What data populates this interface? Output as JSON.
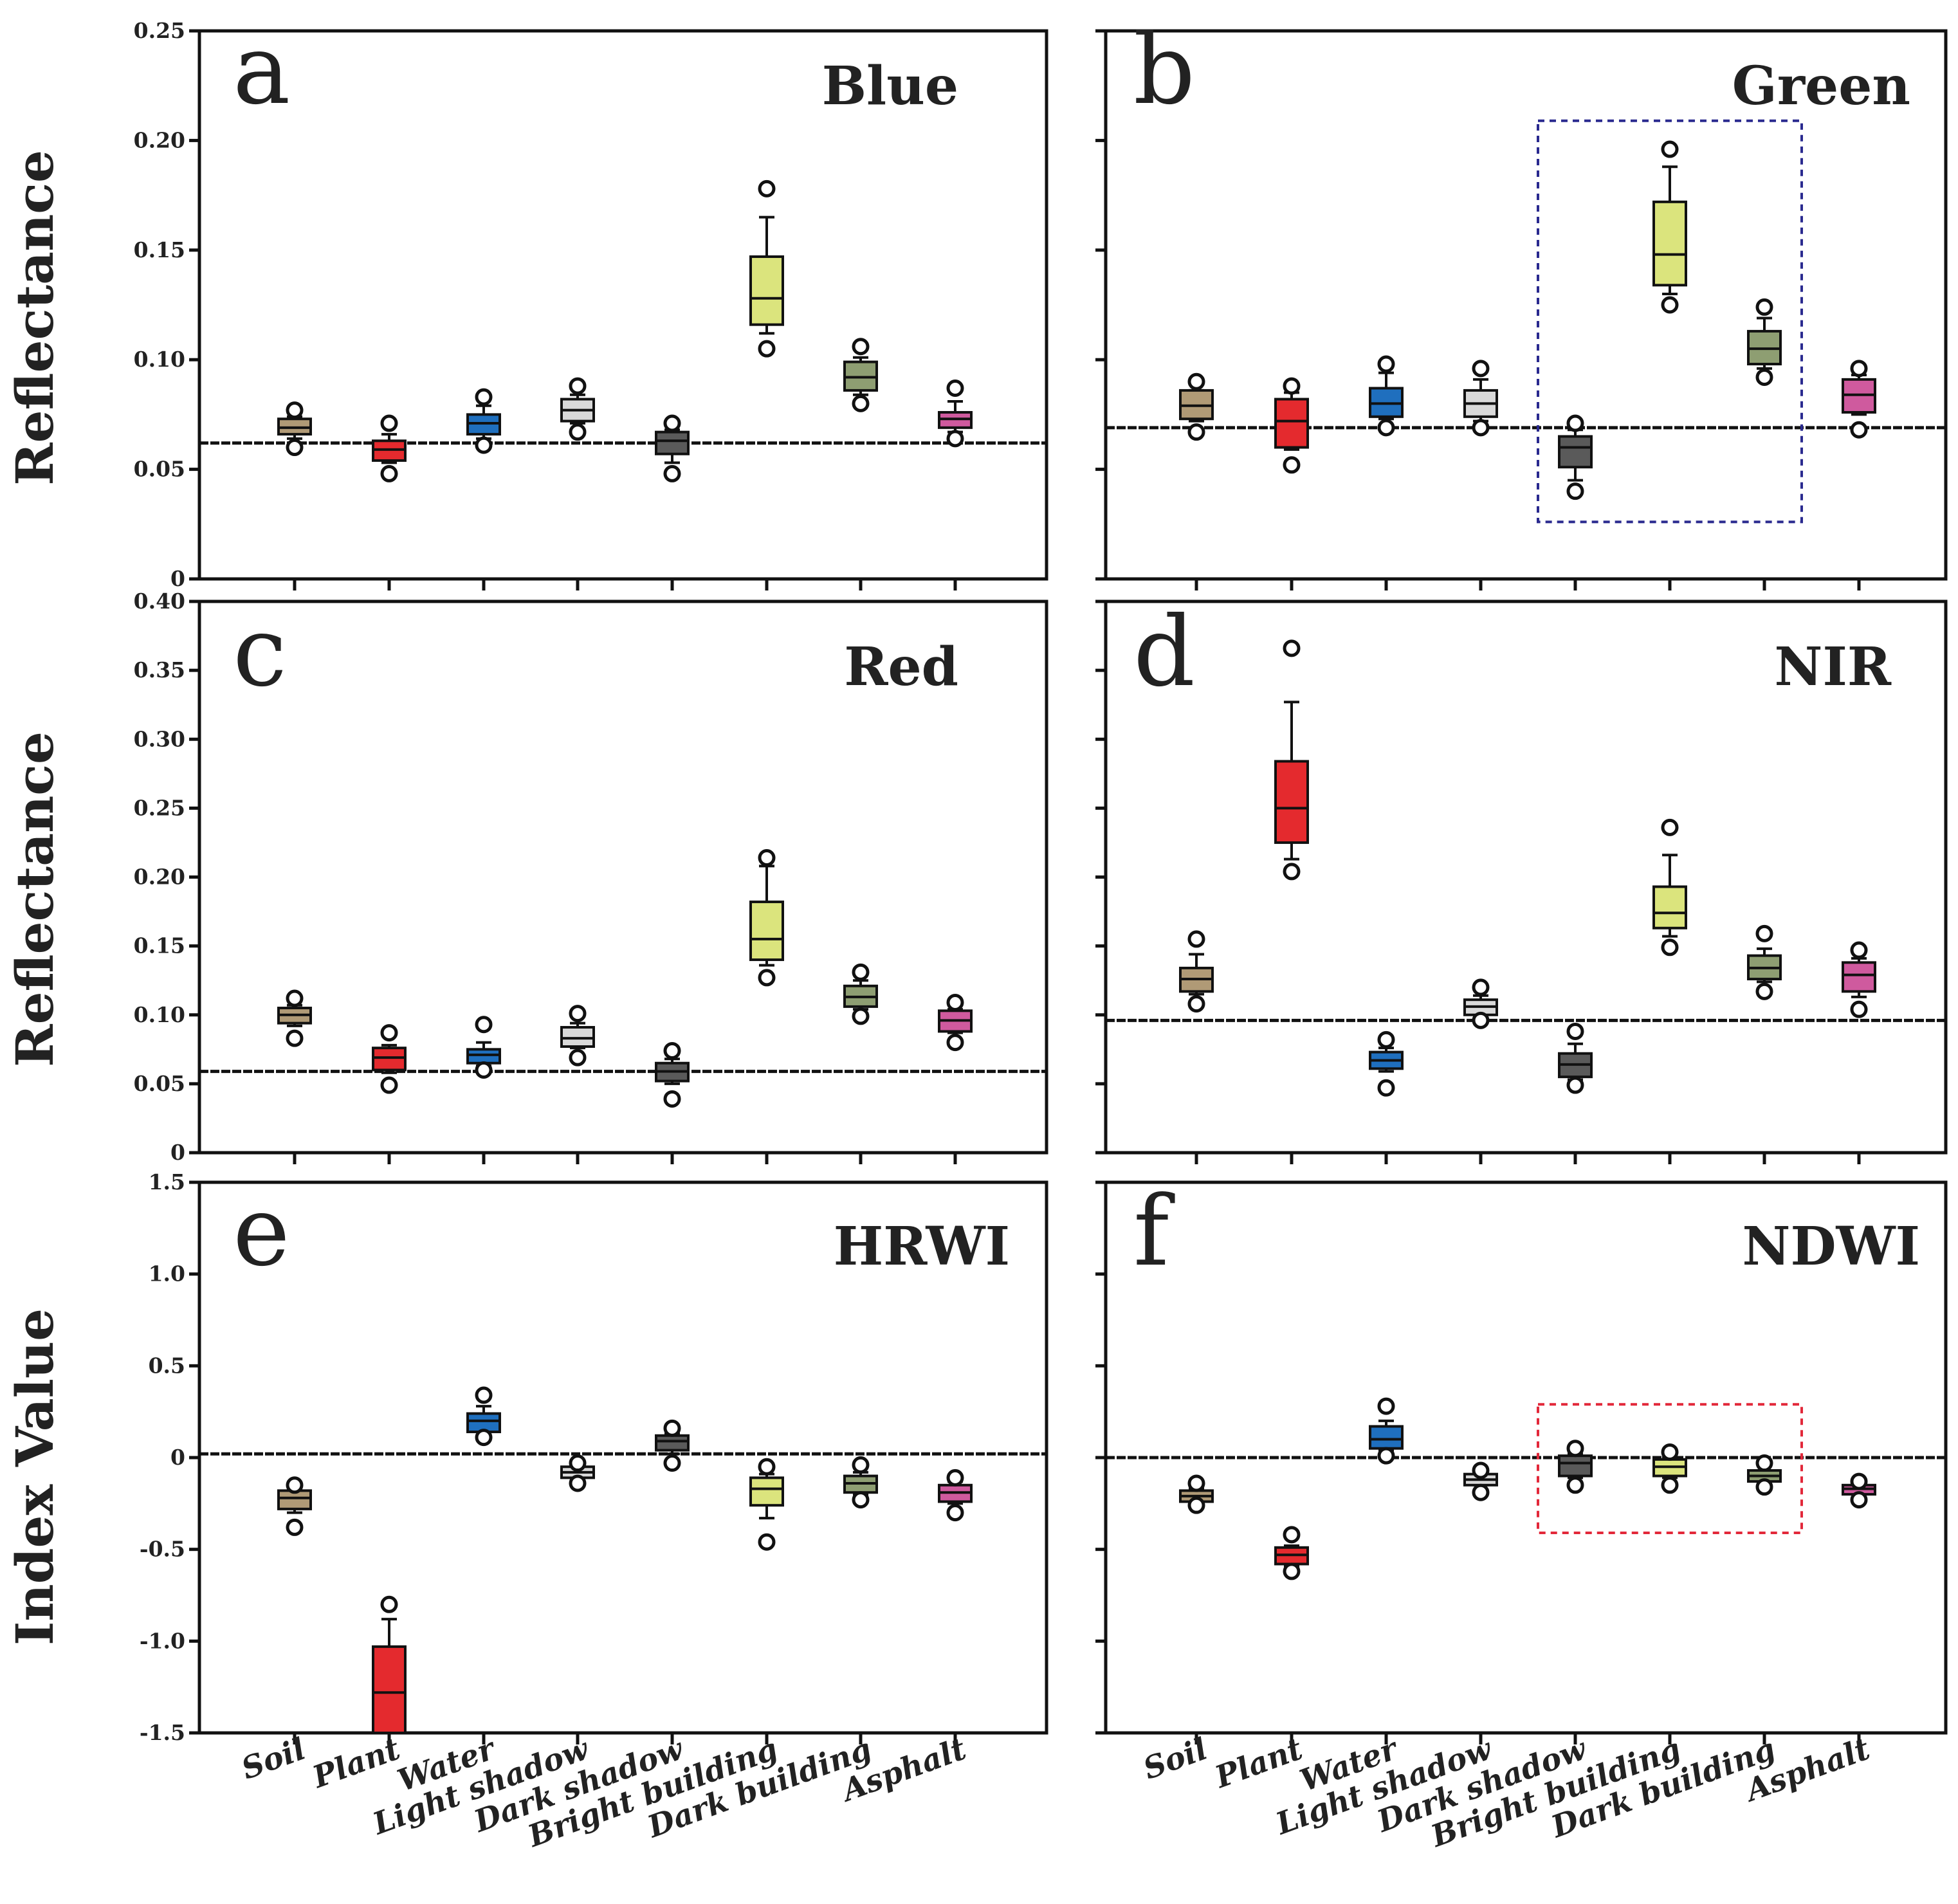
{
  "y_axis_labels": {
    "row1": "Reflectance",
    "row2": "Reflectance",
    "row3": "Index Value"
  },
  "categories": [
    "Soil",
    "Plant",
    "Water",
    "Light shadow",
    "Dark shadow",
    "Bright building",
    "Dark building",
    "Asphalt"
  ],
  "category_colors": [
    "#b09a76",
    "#e42a2e",
    "#1f6fbe",
    "#d9d9d9",
    "#5a5a5a",
    "#dbe47d",
    "#8e9e72",
    "#cf5a9e"
  ],
  "chart_data": [
    {
      "type": "box",
      "letter": "a",
      "title": "Blue",
      "ylim": [
        0,
        0.25
      ],
      "yticks": [
        0,
        0.05,
        0.1,
        0.15,
        0.2,
        0.25
      ],
      "ytick_labels": [
        "0",
        "0.05",
        "0.10",
        "0.15",
        "0.20",
        "0.25"
      ],
      "reference_line": 0.062,
      "boxes": [
        {
          "category": "Soil",
          "wlo": 0.064,
          "q1": 0.066,
          "median": 0.069,
          "q3": 0.073,
          "whi": 0.074,
          "outliers": [
            0.06,
            0.077
          ]
        },
        {
          "category": "Plant",
          "wlo": 0.053,
          "q1": 0.054,
          "median": 0.059,
          "q3": 0.063,
          "whi": 0.066,
          "outliers": [
            0.048,
            0.071
          ]
        },
        {
          "category": "Water",
          "wlo": 0.064,
          "q1": 0.066,
          "median": 0.071,
          "q3": 0.075,
          "whi": 0.079,
          "outliers": [
            0.061,
            0.083
          ]
        },
        {
          "category": "Light shadow",
          "wlo": 0.071,
          "q1": 0.072,
          "median": 0.077,
          "q3": 0.082,
          "whi": 0.084,
          "outliers": [
            0.067,
            0.088
          ]
        },
        {
          "category": "Dark shadow",
          "wlo": 0.053,
          "q1": 0.057,
          "median": 0.063,
          "q3": 0.067,
          "whi": 0.068,
          "outliers": [
            0.048,
            0.071
          ]
        },
        {
          "category": "Bright building",
          "wlo": 0.112,
          "q1": 0.116,
          "median": 0.128,
          "q3": 0.147,
          "whi": 0.165,
          "outliers": [
            0.105,
            0.178
          ]
        },
        {
          "category": "Dark building",
          "wlo": 0.084,
          "q1": 0.086,
          "median": 0.092,
          "q3": 0.099,
          "whi": 0.101,
          "outliers": [
            0.08,
            0.106
          ]
        },
        {
          "category": "Asphalt",
          "wlo": 0.067,
          "q1": 0.069,
          "median": 0.073,
          "q3": 0.076,
          "whi": 0.081,
          "outliers": [
            0.064,
            0.087
          ]
        }
      ]
    },
    {
      "type": "box",
      "letter": "b",
      "title": "Green",
      "ylim": [
        0,
        0.25
      ],
      "yticks": [
        0,
        0.05,
        0.1,
        0.15,
        0.2,
        0.25
      ],
      "ytick_labels": [],
      "reference_line": 0.069,
      "highlight": {
        "from": 4,
        "to": 6,
        "y0": 0.026,
        "y1": 0.209,
        "color": "#2a2a8f"
      },
      "boxes": [
        {
          "category": "Soil",
          "wlo": 0.072,
          "q1": 0.073,
          "median": 0.079,
          "q3": 0.086,
          "whi": 0.086,
          "outliers": [
            0.067,
            0.09
          ]
        },
        {
          "category": "Plant",
          "wlo": 0.059,
          "q1": 0.06,
          "median": 0.072,
          "q3": 0.082,
          "whi": 0.085,
          "outliers": [
            0.052,
            0.088
          ]
        },
        {
          "category": "Water",
          "wlo": 0.073,
          "q1": 0.074,
          "median": 0.08,
          "q3": 0.087,
          "whi": 0.094,
          "outliers": [
            0.069,
            0.098
          ]
        },
        {
          "category": "Light shadow",
          "wlo": 0.072,
          "q1": 0.074,
          "median": 0.08,
          "q3": 0.086,
          "whi": 0.091,
          "outliers": [
            0.069,
            0.096
          ]
        },
        {
          "category": "Dark shadow",
          "wlo": 0.045,
          "q1": 0.051,
          "median": 0.06,
          "q3": 0.065,
          "whi": 0.068,
          "outliers": [
            0.04,
            0.071
          ]
        },
        {
          "category": "Bright building",
          "wlo": 0.13,
          "q1": 0.134,
          "median": 0.148,
          "q3": 0.172,
          "whi": 0.188,
          "outliers": [
            0.125,
            0.196
          ]
        },
        {
          "category": "Dark building",
          "wlo": 0.096,
          "q1": 0.098,
          "median": 0.105,
          "q3": 0.113,
          "whi": 0.119,
          "outliers": [
            0.092,
            0.124
          ]
        },
        {
          "category": "Asphalt",
          "wlo": 0.075,
          "q1": 0.076,
          "median": 0.084,
          "q3": 0.091,
          "whi": 0.093,
          "outliers": [
            0.068,
            0.096
          ]
        }
      ]
    },
    {
      "type": "box",
      "letter": "c",
      "title": "Red",
      "ylim": [
        0,
        0.4
      ],
      "yticks": [
        0,
        0.05,
        0.1,
        0.15,
        0.2,
        0.25,
        0.3,
        0.35,
        0.4
      ],
      "ytick_labels": [
        "0",
        "0.05",
        "0.10",
        "0.15",
        "0.20",
        "0.25",
        "0.30",
        "0.35",
        "0.40"
      ],
      "reference_line": 0.059,
      "boxes": [
        {
          "category": "Soil",
          "wlo": 0.092,
          "q1": 0.094,
          "median": 0.1,
          "q3": 0.105,
          "whi": 0.107,
          "outliers": [
            0.083,
            0.112
          ]
        },
        {
          "category": "Plant",
          "wlo": 0.058,
          "q1": 0.06,
          "median": 0.069,
          "q3": 0.076,
          "whi": 0.078,
          "outliers": [
            0.049,
            0.087
          ]
        },
        {
          "category": "Water",
          "wlo": 0.063,
          "q1": 0.065,
          "median": 0.071,
          "q3": 0.075,
          "whi": 0.08,
          "outliers": [
            0.06,
            0.093
          ]
        },
        {
          "category": "Light shadow",
          "wlo": 0.076,
          "q1": 0.077,
          "median": 0.083,
          "q3": 0.091,
          "whi": 0.094,
          "outliers": [
            0.069,
            0.101
          ]
        },
        {
          "category": "Dark shadow",
          "wlo": 0.05,
          "q1": 0.052,
          "median": 0.059,
          "q3": 0.065,
          "whi": 0.068,
          "outliers": [
            0.039,
            0.074
          ]
        },
        {
          "category": "Bright building",
          "wlo": 0.136,
          "q1": 0.14,
          "median": 0.155,
          "q3": 0.182,
          "whi": 0.208,
          "outliers": [
            0.127,
            0.214
          ]
        },
        {
          "category": "Dark building",
          "wlo": 0.104,
          "q1": 0.106,
          "median": 0.113,
          "q3": 0.121,
          "whi": 0.125,
          "outliers": [
            0.099,
            0.131
          ]
        },
        {
          "category": "Asphalt",
          "wlo": 0.087,
          "q1": 0.088,
          "median": 0.096,
          "q3": 0.103,
          "whi": 0.104,
          "outliers": [
            0.08,
            0.109
          ]
        }
      ]
    },
    {
      "type": "box",
      "letter": "d",
      "title": "NIR",
      "ylim": [
        0,
        0.4
      ],
      "yticks": [
        0,
        0.05,
        0.1,
        0.15,
        0.2,
        0.25,
        0.3,
        0.35,
        0.4
      ],
      "ytick_labels": [],
      "reference_line": 0.096,
      "boxes": [
        {
          "category": "Soil",
          "wlo": 0.115,
          "q1": 0.117,
          "median": 0.126,
          "q3": 0.134,
          "whi": 0.144,
          "outliers": [
            0.108,
            0.155
          ]
        },
        {
          "category": "Plant",
          "wlo": 0.213,
          "q1": 0.225,
          "median": 0.25,
          "q3": 0.284,
          "whi": 0.327,
          "outliers": [
            0.204,
            0.366
          ]
        },
        {
          "category": "Water",
          "wlo": 0.059,
          "q1": 0.061,
          "median": 0.067,
          "q3": 0.073,
          "whi": 0.076,
          "outliers": [
            0.047,
            0.082
          ]
        },
        {
          "category": "Light shadow",
          "wlo": 0.099,
          "q1": 0.1,
          "median": 0.106,
          "q3": 0.111,
          "whi": 0.114,
          "outliers": [
            0.096,
            0.12
          ]
        },
        {
          "category": "Dark shadow",
          "wlo": 0.053,
          "q1": 0.055,
          "median": 0.064,
          "q3": 0.072,
          "whi": 0.079,
          "outliers": [
            0.049,
            0.088
          ]
        },
        {
          "category": "Bright building",
          "wlo": 0.157,
          "q1": 0.163,
          "median": 0.174,
          "q3": 0.193,
          "whi": 0.216,
          "outliers": [
            0.149,
            0.236
          ]
        },
        {
          "category": "Dark building",
          "wlo": 0.124,
          "q1": 0.126,
          "median": 0.134,
          "q3": 0.143,
          "whi": 0.148,
          "outliers": [
            0.117,
            0.159
          ]
        },
        {
          "category": "Asphalt",
          "wlo": 0.113,
          "q1": 0.117,
          "median": 0.129,
          "q3": 0.138,
          "whi": 0.141,
          "outliers": [
            0.104,
            0.147
          ]
        }
      ]
    },
    {
      "type": "box",
      "letter": "e",
      "title": "HRWI",
      "ylim": [
        -1.5,
        1.5
      ],
      "yticks": [
        -1.5,
        -1.0,
        -0.5,
        0,
        0.5,
        1.0,
        1.5
      ],
      "ytick_labels": [
        "-1.5",
        "-1.0",
        "-0.5",
        "0",
        "0.5",
        "1.0",
        "1.5"
      ],
      "reference_line": 0.02,
      "boxes": [
        {
          "category": "Soil",
          "wlo": -0.3,
          "q1": -0.28,
          "median": -0.22,
          "q3": -0.18,
          "whi": -0.17,
          "outliers": [
            -0.38,
            -0.15
          ]
        },
        {
          "category": "Plant",
          "wlo": -1.5,
          "q1": -1.5,
          "median": -1.28,
          "q3": -1.03,
          "whi": -0.88,
          "outliers": [
            -0.8
          ]
        },
        {
          "category": "Water",
          "wlo": 0.15,
          "q1": 0.14,
          "median": 0.2,
          "q3": 0.24,
          "whi": 0.28,
          "outliers": [
            0.11,
            0.34
          ]
        },
        {
          "category": "Light shadow",
          "wlo": -0.12,
          "q1": -0.11,
          "median": -0.08,
          "q3": -0.05,
          "whi": -0.05,
          "outliers": [
            -0.14,
            -0.03
          ]
        },
        {
          "category": "Dark shadow",
          "wlo": 0.02,
          "q1": 0.04,
          "median": 0.09,
          "q3": 0.12,
          "whi": 0.13,
          "outliers": [
            -0.03,
            0.16
          ]
        },
        {
          "category": "Bright building",
          "wlo": -0.33,
          "q1": -0.26,
          "median": -0.17,
          "q3": -0.11,
          "whi": -0.09,
          "outliers": [
            -0.46,
            -0.05
          ]
        },
        {
          "category": "Dark building",
          "wlo": -0.2,
          "q1": -0.19,
          "median": -0.14,
          "q3": -0.1,
          "whi": -0.08,
          "outliers": [
            -0.23,
            -0.04
          ]
        },
        {
          "category": "Asphalt",
          "wlo": -0.25,
          "q1": -0.24,
          "median": -0.19,
          "q3": -0.15,
          "whi": -0.13,
          "outliers": [
            -0.3,
            -0.11
          ]
        }
      ]
    },
    {
      "type": "box",
      "letter": "f",
      "title": "NDWI",
      "ylim": [
        -1.5,
        1.5
      ],
      "yticks": [
        -1.5,
        -1.0,
        -0.5,
        0,
        0.5,
        1.0,
        1.5
      ],
      "ytick_labels": [],
      "reference_line": 0.0,
      "highlight": {
        "from": 4,
        "to": 6,
        "y0": -0.41,
        "y1": 0.29,
        "color": "#e2283a"
      },
      "boxes": [
        {
          "category": "Soil",
          "wlo": -0.24,
          "q1": -0.24,
          "median": -0.21,
          "q3": -0.18,
          "whi": -0.17,
          "outliers": [
            -0.26,
            -0.14
          ]
        },
        {
          "category": "Plant",
          "wlo": -0.59,
          "q1": -0.58,
          "median": -0.53,
          "q3": -0.49,
          "whi": -0.48,
          "outliers": [
            -0.62,
            -0.42
          ]
        },
        {
          "category": "Water",
          "wlo": 0.04,
          "q1": 0.05,
          "median": 0.1,
          "q3": 0.17,
          "whi": 0.2,
          "outliers": [
            0.01,
            0.28
          ]
        },
        {
          "category": "Light shadow",
          "wlo": -0.15,
          "q1": -0.15,
          "median": -0.12,
          "q3": -0.09,
          "whi": -0.09,
          "outliers": [
            -0.19,
            -0.07
          ]
        },
        {
          "category": "Dark shadow",
          "wlo": -0.11,
          "q1": -0.1,
          "median": -0.03,
          "q3": 0.01,
          "whi": 0.02,
          "outliers": [
            -0.15,
            0.05
          ]
        },
        {
          "category": "Bright building",
          "wlo": -0.11,
          "q1": -0.1,
          "median": -0.05,
          "q3": -0.01,
          "whi": 0.0,
          "outliers": [
            -0.15,
            0.03
          ]
        },
        {
          "category": "Dark building",
          "wlo": -0.14,
          "q1": -0.13,
          "median": -0.1,
          "q3": -0.07,
          "whi": -0.07,
          "outliers": [
            -0.16,
            -0.03
          ]
        },
        {
          "category": "Asphalt",
          "wlo": -0.2,
          "q1": -0.2,
          "median": -0.17,
          "q3": -0.15,
          "whi": -0.15,
          "outliers": [
            -0.23,
            -0.13
          ]
        }
      ]
    }
  ]
}
